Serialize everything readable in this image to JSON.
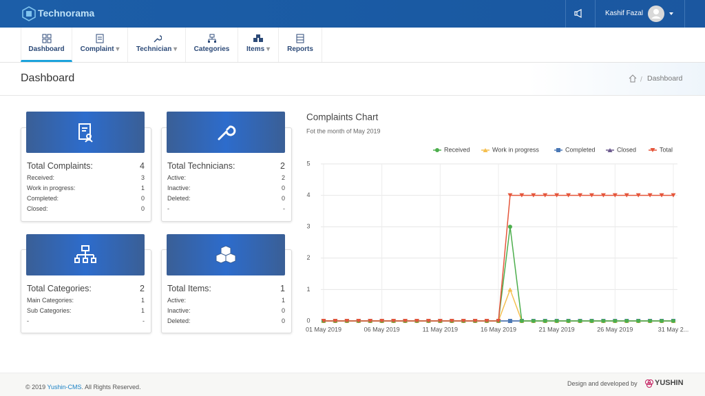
{
  "header": {
    "brand": "Technorama",
    "user": "Kashif Fazal"
  },
  "nav": [
    "Dashboard",
    "Complaint",
    "Technician",
    "Categories",
    "Items",
    "Reports"
  ],
  "page": {
    "title": "Dashboard",
    "breadcrumb": "Dashboard"
  },
  "cards": [
    {
      "title": "Total Complaints:",
      "total": 4,
      "rows": [
        [
          "Received:",
          3
        ],
        [
          "Work in progress:",
          1
        ],
        [
          "Completed:",
          0
        ],
        [
          "Closed:",
          0
        ]
      ]
    },
    {
      "title": "Total Technicians:",
      "total": 2,
      "rows": [
        [
          "Active:",
          2
        ],
        [
          "Inactive:",
          0
        ],
        [
          "Deleted:",
          0
        ],
        [
          "-",
          "-"
        ]
      ]
    },
    {
      "title": "Total Categories:",
      "total": 2,
      "rows": [
        [
          "Main Categories:",
          1
        ],
        [
          "Sub Categories:",
          1
        ],
        [
          "-",
          "-"
        ]
      ]
    },
    {
      "title": "Total Items:",
      "total": 1,
      "rows": [
        [
          "Active:",
          1
        ],
        [
          "Inactive:",
          0
        ],
        [
          "Deleted:",
          0
        ]
      ]
    }
  ],
  "chart_data": {
    "type": "line",
    "title": "Complaints Chart",
    "subtitle": "Fot the month of May 2019",
    "categories": [
      "01 May 2019",
      null,
      null,
      null,
      null,
      "06 May 2019",
      null,
      null,
      null,
      null,
      "11 May 2019",
      null,
      null,
      null,
      null,
      "16 May 2019",
      null,
      null,
      null,
      null,
      "21 May 2019",
      null,
      null,
      null,
      null,
      "26 May 2019",
      null,
      null,
      null,
      null,
      "31 May 2..."
    ],
    "series": [
      {
        "name": "Received",
        "color": "#4cae4c",
        "values": [
          0,
          0,
          0,
          0,
          0,
          0,
          0,
          0,
          0,
          0,
          0,
          0,
          0,
          0,
          0,
          0,
          3,
          0,
          0,
          0,
          0,
          0,
          0,
          0,
          0,
          0,
          0,
          0,
          0,
          0,
          0
        ]
      },
      {
        "name": "Work in progress",
        "color": "#f4bf4f",
        "values": [
          0,
          0,
          0,
          0,
          0,
          0,
          0,
          0,
          0,
          0,
          0,
          0,
          0,
          0,
          0,
          0,
          1,
          0,
          0,
          0,
          0,
          0,
          0,
          0,
          0,
          0,
          0,
          0,
          0,
          0,
          0
        ]
      },
      {
        "name": "Completed",
        "color": "#4a78b5",
        "values": [
          0,
          0,
          0,
          0,
          0,
          0,
          0,
          0,
          0,
          0,
          0,
          0,
          0,
          0,
          0,
          0,
          0,
          0,
          0,
          0,
          0,
          0,
          0,
          0,
          0,
          0,
          0,
          0,
          0,
          0,
          0
        ]
      },
      {
        "name": "Closed",
        "color": "#6c5a8e",
        "values": [
          0,
          0,
          0,
          0,
          0,
          0,
          0,
          0,
          0,
          0,
          0,
          0,
          0,
          0,
          0,
          0,
          0,
          0,
          0,
          0,
          0,
          0,
          0,
          0,
          0,
          0,
          0,
          0,
          0,
          0,
          0
        ]
      },
      {
        "name": "Total",
        "color": "#e5553a",
        "values": [
          0,
          0,
          0,
          0,
          0,
          0,
          0,
          0,
          0,
          0,
          0,
          0,
          0,
          0,
          0,
          0,
          4,
          4,
          4,
          4,
          4,
          4,
          4,
          4,
          4,
          4,
          4,
          4,
          4,
          4,
          4
        ]
      }
    ],
    "ylim": [
      0,
      5
    ],
    "yticks": [
      0,
      1,
      2,
      3,
      4,
      5
    ],
    "grid": true,
    "legend": "top-right"
  },
  "footer": {
    "copy_prefix": "© 2019",
    "copy_link": "Yushin-CMS",
    "copy_suffix": ". All Rights Reserved.",
    "credit": "Design and developed by",
    "logo": "YUSHIN"
  }
}
